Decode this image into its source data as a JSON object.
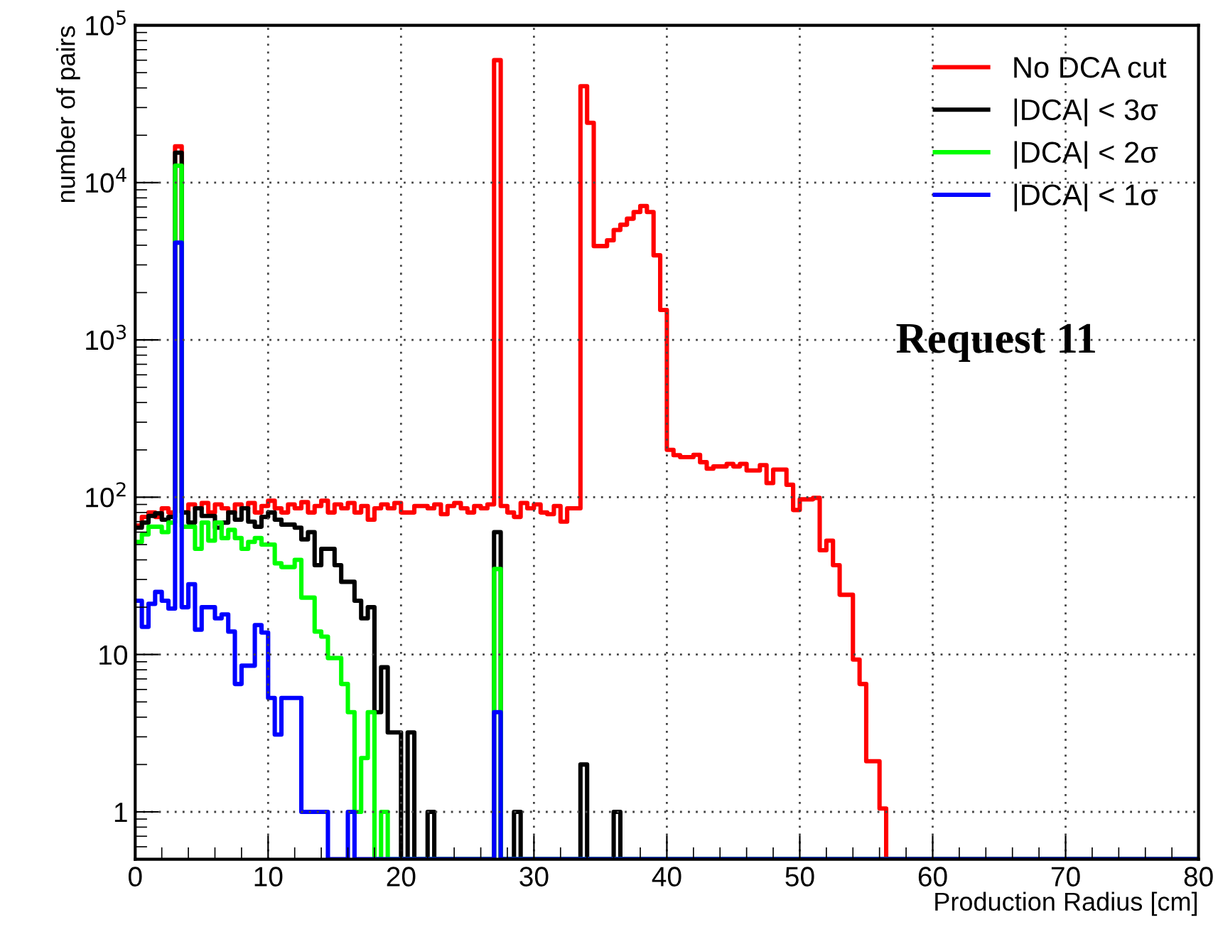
{
  "chart_data": {
    "type": "histogram",
    "xlabel": "Production Radius [cm]",
    "ylabel": "number of pairs",
    "log": "y",
    "grid": true,
    "legend": "top right",
    "line_style": "solid",
    "xlim": [
      0,
      80
    ],
    "xticks": [
      0,
      10,
      20,
      30,
      40,
      50,
      60,
      70,
      80
    ],
    "ylim": [
      0.5,
      100000
    ],
    "yticks": [
      1,
      10,
      {
        "value": 100,
        "label": "10$^{2}$"
      },
      {
        "value": 1000,
        "label": "10$^{3}$"
      },
      {
        "value": 10000,
        "label": "10$^{4}$"
      },
      {
        "value": 100000,
        "label": "10$^{5}$"
      }
    ],
    "annotations": [
      "Request 11"
    ],
    "bins": [
      0,
      0.5,
      1,
      1.5,
      2,
      2.5,
      3,
      3.5,
      4,
      4.5,
      5,
      5.5,
      6,
      6.5,
      7,
      7.5,
      8,
      8.5,
      9,
      9.5,
      10,
      10.5,
      11,
      11.5,
      12,
      12.5,
      13,
      13.5,
      14,
      14.5,
      15,
      15.5,
      16,
      16.5,
      17,
      17.5,
      18,
      18.5,
      19,
      19.5,
      20,
      20.5,
      21,
      21.5,
      22,
      22.5,
      23,
      23.5,
      24,
      24.5,
      25,
      25.5,
      26,
      26.5,
      27,
      27.5,
      28,
      28.5,
      29,
      29.5,
      30,
      30.5,
      31,
      31.5,
      32,
      32.5,
      33,
      33.5,
      34,
      34.5,
      35,
      35.5,
      36,
      36.5,
      37,
      37.5,
      38,
      38.5,
      39,
      39.5,
      40,
      40.5,
      41,
      41.5,
      42,
      42.5,
      43,
      43.5,
      44,
      44.5,
      45,
      45.5,
      46,
      46.5,
      47,
      47.5,
      48,
      48.5,
      49,
      49.5,
      50,
      50.5,
      51,
      51.5,
      52,
      52.5,
      53,
      53.5,
      54,
      54.5,
      55,
      55.5,
      56,
      56.5,
      57,
      57.5,
      58,
      58.5,
      59,
      59.5,
      60,
      60.5,
      61,
      61.5,
      62,
      62.5,
      63,
      63.5,
      64,
      64.5,
      65,
      65.5,
      66,
      66.5,
      67,
      67.5,
      68,
      68.5,
      69,
      69.5,
      70,
      70.5,
      71,
      71.5,
      72,
      72.5,
      73,
      73.5,
      74,
      74.5,
      75,
      75.5,
      76,
      76.5,
      77,
      77.5,
      78,
      78.5,
      79,
      79.5,
      80
    ],
    "series": [
      {
        "name": "No DCA cut",
        "color": "#ff0000",
        "values": [
          66,
          75,
          80,
          75,
          85,
          80,
          17000,
          80,
          90,
          85,
          92,
          80,
          90,
          85,
          80,
          90,
          85,
          92,
          80,
          88,
          95,
          85,
          80,
          90,
          85,
          93,
          80,
          88,
          95,
          80,
          90,
          85,
          92,
          80,
          88,
          72,
          85,
          90,
          85,
          92,
          80,
          80,
          88,
          88,
          85,
          90,
          78,
          88,
          92,
          85,
          80,
          88,
          85,
          90,
          60000,
          88,
          80,
          75,
          92,
          85,
          90,
          80,
          78,
          88,
          70,
          85,
          85,
          41000,
          24000,
          3950,
          3950,
          4300,
          5000,
          5400,
          5900,
          6500,
          7100,
          6500,
          3450,
          1550,
          200,
          185,
          180,
          180,
          186,
          167,
          152,
          157,
          157,
          163,
          157,
          163,
          148,
          148,
          160,
          123,
          150,
          150,
          120,
          83,
          97,
          97,
          99,
          46,
          53,
          37,
          24,
          24,
          9.3,
          6.5,
          2.1,
          2.1,
          1.05,
          null,
          null,
          null,
          null,
          null,
          null,
          null,
          null,
          null,
          null,
          null,
          null,
          null,
          null,
          null,
          null,
          null,
          null,
          null,
          null,
          null,
          null,
          null,
          null,
          null,
          null,
          null,
          null,
          null,
          null,
          null,
          null,
          null,
          null,
          null,
          null,
          null,
          null,
          null,
          null,
          null,
          null,
          null,
          null,
          null,
          null,
          null
        ]
      },
      {
        "name": "|DCA| < 3σ",
        "color": "#000000",
        "values": [
          64,
          69,
          76,
          79,
          72,
          75,
          15500,
          80,
          69,
          85,
          76,
          76,
          64,
          69,
          80,
          72,
          85,
          70,
          65,
          75,
          80,
          72,
          67,
          67,
          64,
          54,
          60,
          37,
          47,
          47,
          37,
          29,
          29,
          22,
          17,
          20,
          4.3,
          8.3,
          3.2,
          3.2,
          null,
          3.2,
          null,
          null,
          1,
          null,
          null,
          null,
          null,
          null,
          null,
          null,
          null,
          null,
          60,
          null,
          null,
          1,
          null,
          null,
          null,
          null,
          null,
          null,
          null,
          null,
          null,
          2,
          null,
          null,
          null,
          null,
          1,
          null,
          null,
          null,
          null,
          null,
          null,
          null,
          null,
          null,
          null,
          null,
          null,
          null,
          null,
          null,
          null,
          null,
          null,
          null,
          null,
          null,
          null,
          null,
          null,
          null,
          null,
          null,
          null,
          null,
          null,
          null,
          null,
          null,
          null,
          null,
          null,
          null,
          null,
          null,
          null,
          null,
          null,
          null,
          null,
          null,
          null,
          null,
          null,
          null,
          null,
          null,
          null,
          null,
          null,
          null,
          null,
          null,
          null,
          null,
          null,
          null,
          null,
          null,
          null,
          null,
          null,
          null,
          null,
          null,
          null,
          null,
          null,
          null,
          null,
          null,
          null,
          null,
          null,
          null,
          null,
          null,
          null,
          null,
          null,
          null,
          null,
          null
        ]
      },
      {
        "name": "|DCA| < 2σ",
        "color": "#00ff00",
        "values": [
          52,
          58,
          65,
          65,
          60,
          69,
          12800,
          65,
          65,
          47,
          69,
          53,
          69,
          55,
          62,
          55,
          47,
          52,
          55,
          50,
          50,
          38,
          36,
          36,
          40,
          23,
          23,
          14,
          13,
          9.5,
          9.5,
          6.5,
          4.3,
          1,
          2.2,
          4.3,
          null,
          1,
          null,
          null,
          null,
          null,
          null,
          null,
          null,
          null,
          null,
          null,
          null,
          null,
          null,
          null,
          null,
          null,
          35,
          null,
          null,
          null,
          null,
          null,
          null,
          null,
          null,
          null,
          null,
          null,
          null,
          null,
          null,
          null,
          null,
          null,
          null,
          null,
          null,
          null,
          null,
          null,
          null,
          null,
          null,
          null,
          null,
          null,
          null,
          null,
          null,
          null,
          null,
          null,
          null,
          null,
          null,
          null,
          null,
          null,
          null,
          null,
          null,
          null,
          null,
          null,
          null,
          null,
          null,
          null,
          null,
          null,
          null,
          null,
          null,
          null,
          null,
          null,
          null,
          null,
          null,
          null,
          null,
          null,
          null,
          null,
          null,
          null,
          null,
          null,
          null,
          null,
          null,
          null,
          null,
          null,
          null,
          null,
          null,
          null,
          null,
          null,
          null,
          null,
          null,
          null,
          null,
          null,
          null,
          null,
          null,
          null,
          null,
          null,
          null,
          null,
          null,
          null,
          null,
          null,
          null,
          null,
          null,
          null
        ]
      },
      {
        "name": "|DCA| < 1σ",
        "color": "#0000ff",
        "values": [
          22,
          15,
          21,
          25,
          22,
          19.6,
          4150,
          20,
          28,
          14.4,
          20,
          20,
          17,
          18,
          14,
          6.5,
          8.5,
          8.5,
          15.4,
          13.8,
          5.3,
          3.1,
          5.3,
          5.3,
          5.3,
          1,
          1,
          1,
          1,
          null,
          null,
          null,
          1,
          null,
          null,
          null,
          null,
          null,
          null,
          null,
          null,
          null,
          null,
          null,
          null,
          null,
          null,
          null,
          null,
          null,
          null,
          null,
          null,
          null,
          4.3,
          null,
          null,
          null,
          null,
          null,
          null,
          null,
          null,
          null,
          null,
          null,
          null,
          null,
          null,
          null,
          null,
          null,
          null,
          null,
          null,
          null,
          null,
          null,
          null,
          null,
          null,
          null,
          null,
          null,
          null,
          null,
          null,
          null,
          null,
          null,
          null,
          null,
          null,
          null,
          null,
          null,
          null,
          null,
          null,
          null,
          null,
          null,
          null,
          null,
          null,
          null,
          null,
          null,
          null,
          null,
          null,
          null,
          null,
          null,
          null,
          null,
          null,
          null,
          null,
          null,
          null,
          null,
          null,
          null,
          null,
          null,
          null,
          null,
          null,
          null,
          null,
          null,
          null,
          null,
          null,
          null,
          null,
          null,
          null,
          null,
          null,
          null,
          null,
          null,
          null,
          null,
          null,
          null,
          null,
          null,
          null,
          null,
          null,
          null,
          null,
          null,
          null,
          null,
          null,
          null
        ]
      }
    ]
  }
}
